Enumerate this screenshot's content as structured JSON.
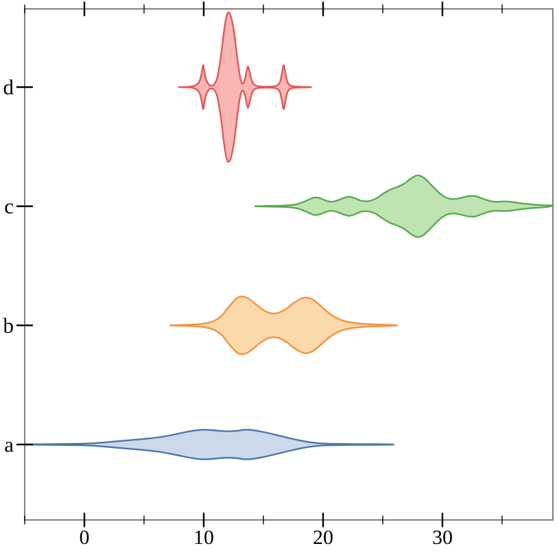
{
  "chart_data": {
    "type": "violin",
    "orientation": "horizontal",
    "title": "",
    "x_axis": {
      "lim": [
        -5,
        39.25
      ],
      "major_ticks": [
        0,
        10,
        20,
        30
      ],
      "major_labels": [
        "0",
        "10",
        "20",
        "30"
      ],
      "minor_ticks": [
        -5,
        5,
        15,
        25,
        35
      ]
    },
    "y_axis": {
      "categories": [
        "a",
        "b",
        "c",
        "d"
      ]
    },
    "grid": "off",
    "legend": "none",
    "frame_color": "#808080",
    "tick_color": "#000000",
    "label_color": "#000000",
    "series": [
      {
        "category": "a",
        "color": "#4c78a8",
        "fill": "#cbd9ea",
        "range": [
          -5,
          25.9
        ],
        "density": [
          [
            -5,
            0
          ],
          [
            -3.5,
            0.4
          ],
          [
            -2,
            0.7
          ],
          [
            -0.5,
            1
          ],
          [
            0.5,
            1.6
          ],
          [
            1.5,
            2.8
          ],
          [
            2.8,
            4.8
          ],
          [
            4,
            6.6
          ],
          [
            5.2,
            8.4
          ],
          [
            6.4,
            11
          ],
          [
            7.5,
            14.5
          ],
          [
            8.6,
            18.5
          ],
          [
            9.4,
            20.8
          ],
          [
            10,
            21.6
          ],
          [
            10.7,
            21
          ],
          [
            11.4,
            19.8
          ],
          [
            12,
            19.3
          ],
          [
            12.7,
            19.8
          ],
          [
            13.3,
            21.3
          ],
          [
            13.8,
            21.5
          ],
          [
            14.4,
            20.2
          ],
          [
            15.2,
            17.5
          ],
          [
            16.1,
            13.8
          ],
          [
            17,
            10
          ],
          [
            17.9,
            6.4
          ],
          [
            18.8,
            3.6
          ],
          [
            19.6,
            1.9
          ],
          [
            20.5,
            1.1
          ],
          [
            21.6,
            0.8
          ],
          [
            23,
            0.6
          ],
          [
            24.5,
            0.5
          ],
          [
            25.9,
            0
          ]
        ]
      },
      {
        "category": "b",
        "color": "#f5923e",
        "fill": "#fcd9ab",
        "range": [
          7.2,
          26.2
        ],
        "density": [
          [
            7.2,
            0
          ],
          [
            8.2,
            0.6
          ],
          [
            9.2,
            1.3
          ],
          [
            10,
            2.6
          ],
          [
            10.8,
            6
          ],
          [
            11.5,
            14
          ],
          [
            12.1,
            27
          ],
          [
            12.7,
            38.5
          ],
          [
            13.1,
            42
          ],
          [
            13.6,
            40.5
          ],
          [
            14.1,
            34.5
          ],
          [
            14.7,
            26
          ],
          [
            15.3,
            19.5
          ],
          [
            15.8,
            17.3
          ],
          [
            16.3,
            18.6
          ],
          [
            16.9,
            24
          ],
          [
            17.5,
            32
          ],
          [
            18.1,
            38.5
          ],
          [
            18.6,
            40.5
          ],
          [
            19.1,
            38
          ],
          [
            19.6,
            31.5
          ],
          [
            20.2,
            22
          ],
          [
            20.8,
            14
          ],
          [
            21.4,
            8.5
          ],
          [
            22.1,
            5
          ],
          [
            22.9,
            3
          ],
          [
            23.8,
            1.8
          ],
          [
            24.8,
            1.1
          ],
          [
            25.6,
            0.6
          ],
          [
            26.2,
            0
          ]
        ]
      },
      {
        "category": "c",
        "color": "#5aab54",
        "fill": "#bfe3b1",
        "range": [
          14.3,
          39.3
        ],
        "density": [
          [
            14.3,
            0
          ],
          [
            15.3,
            0.5
          ],
          [
            16.3,
            0.8
          ],
          [
            17.2,
            1.5
          ],
          [
            17.9,
            3.5
          ],
          [
            18.6,
            8
          ],
          [
            19.2,
            12.5
          ],
          [
            19.7,
            12
          ],
          [
            20.2,
            8.5
          ],
          [
            20.7,
            6.5
          ],
          [
            21.2,
            8.5
          ],
          [
            21.8,
            12.5
          ],
          [
            22.2,
            14
          ],
          [
            22.7,
            11.5
          ],
          [
            23.2,
            8
          ],
          [
            23.8,
            7.5
          ],
          [
            24.4,
            11
          ],
          [
            25,
            18
          ],
          [
            25.6,
            24
          ],
          [
            26.2,
            28
          ],
          [
            26.8,
            33
          ],
          [
            27.4,
            41
          ],
          [
            27.9,
            45
          ],
          [
            28.4,
            42
          ],
          [
            28.9,
            34
          ],
          [
            29.4,
            25
          ],
          [
            29.9,
            17
          ],
          [
            30.4,
            12
          ],
          [
            30.9,
            10.5
          ],
          [
            31.5,
            12
          ],
          [
            32.1,
            14.5
          ],
          [
            32.7,
            15
          ],
          [
            33.3,
            11.5
          ],
          [
            33.9,
            8
          ],
          [
            34.5,
            6.5
          ],
          [
            35.1,
            7
          ],
          [
            35.7,
            6.5
          ],
          [
            36.3,
            5
          ],
          [
            37,
            3.5
          ],
          [
            37.8,
            2.2
          ],
          [
            38.6,
            1.4
          ],
          [
            39.3,
            1
          ]
        ]
      },
      {
        "category": "d",
        "color": "#e45756",
        "fill": "#f8b6b4",
        "range": [
          7.9,
          19.0
        ],
        "density": [
          [
            7.9,
            0
          ],
          [
            8.6,
            0.4
          ],
          [
            9.15,
            1.5
          ],
          [
            9.5,
            5
          ],
          [
            9.7,
            11
          ],
          [
            9.85,
            23
          ],
          [
            9.95,
            32
          ],
          [
            10.05,
            23
          ],
          [
            10.2,
            11
          ],
          [
            10.45,
            3.5
          ],
          [
            10.65,
            2
          ],
          [
            10.9,
            4.5
          ],
          [
            11.15,
            15
          ],
          [
            11.45,
            46
          ],
          [
            11.7,
            82
          ],
          [
            11.9,
            103
          ],
          [
            12.08,
            109
          ],
          [
            12.3,
            102
          ],
          [
            12.55,
            79
          ],
          [
            12.8,
            44
          ],
          [
            13.05,
            14
          ],
          [
            13.25,
            5
          ],
          [
            13.45,
            11
          ],
          [
            13.6,
            24
          ],
          [
            13.72,
            30
          ],
          [
            13.85,
            22
          ],
          [
            14,
            11
          ],
          [
            14.2,
            4
          ],
          [
            14.5,
            1.5
          ],
          [
            15.05,
            0.7
          ],
          [
            15.7,
            0.9
          ],
          [
            16.15,
            2.5
          ],
          [
            16.4,
            8
          ],
          [
            16.55,
            20
          ],
          [
            16.7,
            32
          ],
          [
            16.85,
            20
          ],
          [
            17,
            8
          ],
          [
            17.25,
            2.5
          ],
          [
            17.6,
            1
          ],
          [
            18.2,
            0.4
          ],
          [
            19,
            0
          ]
        ]
      }
    ]
  }
}
